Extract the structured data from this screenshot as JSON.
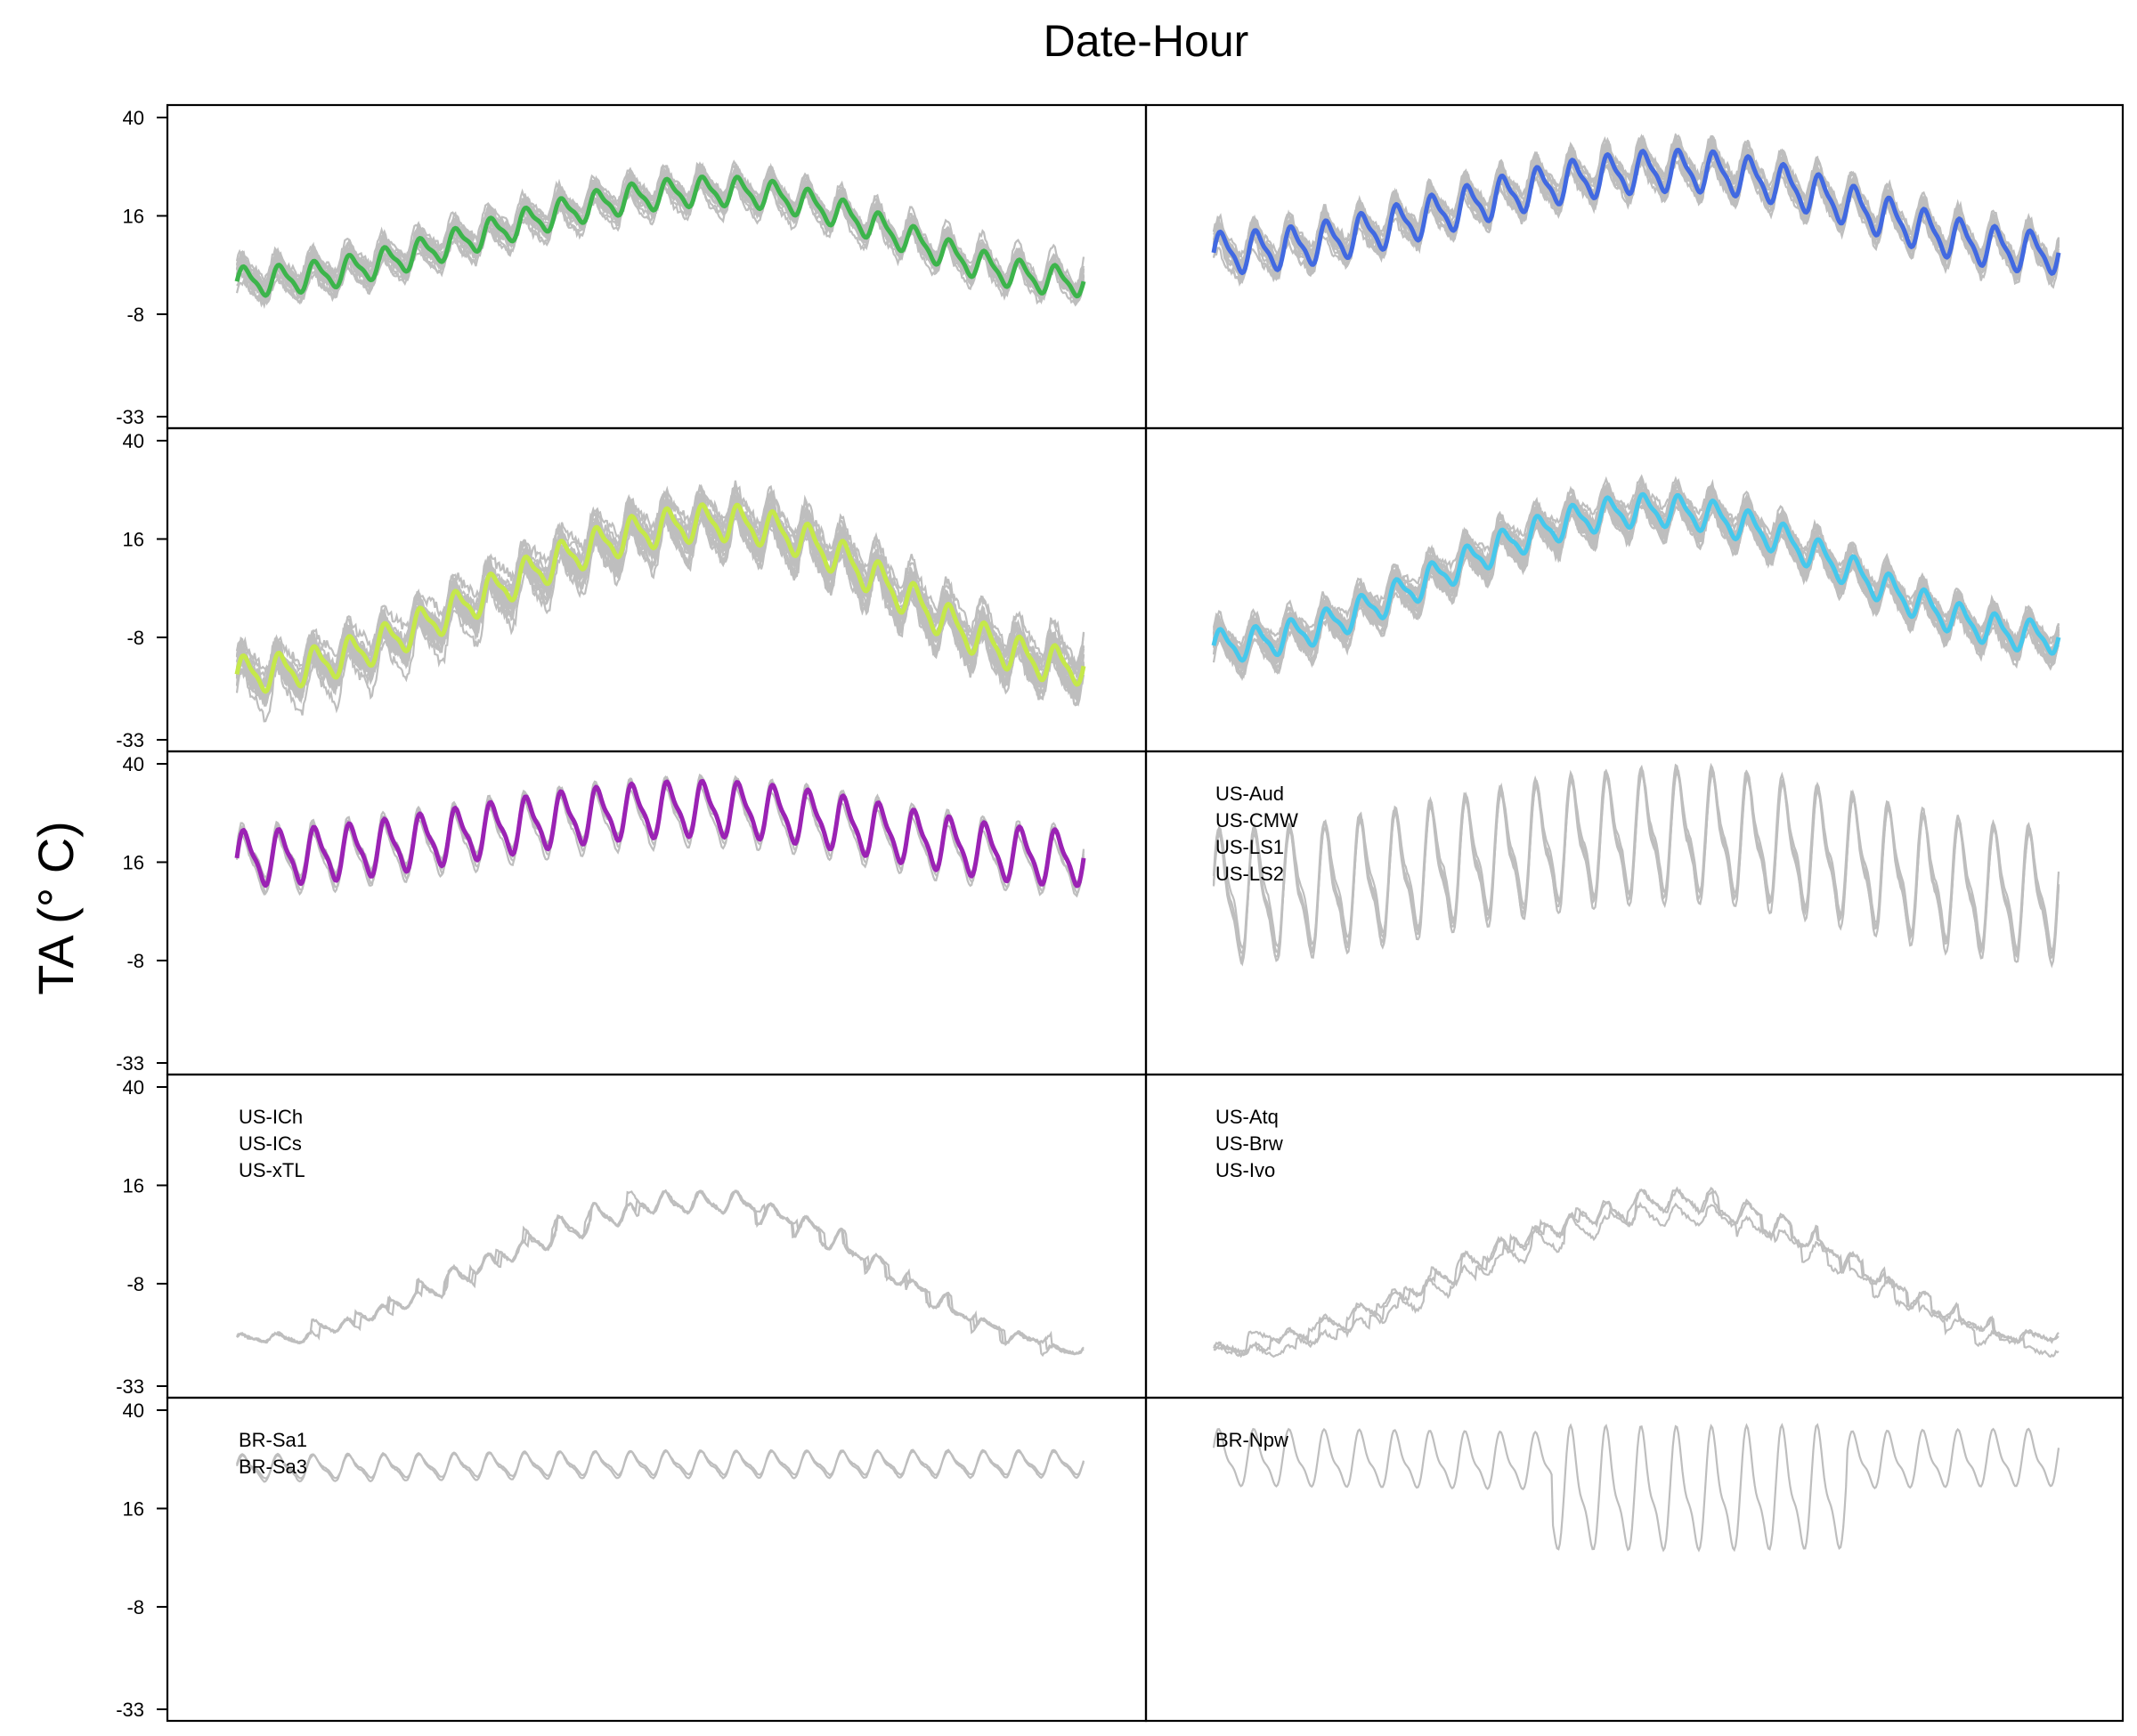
{
  "chart_data": {
    "type": "line",
    "title": "Date-Hour",
    "ylabel": "TA (° C)",
    "xlabel": "",
    "ylim": [
      -33,
      40
    ],
    "y_ticks": [
      40,
      16,
      -8,
      -33
    ],
    "y_tick_labels": [
      "40",
      "16",
      "-8",
      "-33"
    ],
    "grid": false,
    "layout": "5 rows x 2 columns small multiples",
    "background_series_color": "#bebebe",
    "panels": [
      {
        "name": "row1-left",
        "highlight_color": "#3cb44b",
        "ensemble_size": 22,
        "mean_start": 0,
        "mean_peak": 22,
        "mean_end": 0,
        "mean_amplitude": 3.2,
        "spread": 3.5,
        "peak_position": 0.57
      },
      {
        "name": "row1-right",
        "highlight_color": "#4169e1",
        "ensemble_size": 22,
        "mean_start": 7,
        "mean_peak": 27,
        "mean_end": 7,
        "mean_amplitude": 4.5,
        "spread": 4,
        "peak_position": 0.55
      },
      {
        "name": "row2-left",
        "highlight_color": "#c5e84a",
        "ensemble_size": 24,
        "mean_start": -17,
        "mean_peak": 20,
        "mean_end": -15,
        "mean_amplitude": 4,
        "spread": 6,
        "peak_position": 0.57
      },
      {
        "name": "row2-right",
        "highlight_color": "#46c8ec",
        "ensemble_size": 22,
        "mean_start": -10,
        "mean_peak": 23,
        "mean_end": -8,
        "mean_amplitude": 3.5,
        "spread": 4,
        "peak_position": 0.52
      },
      {
        "name": "row3-left",
        "highlight_color": "#9b22b4",
        "ensemble_size": 6,
        "mean_start": 17,
        "mean_peak": 29,
        "mean_end": 17,
        "mean_amplitude": 6,
        "spread": 1.5,
        "peak_position": 0.55
      },
      {
        "name": "row3-right",
        "sites": [
          "US-Aud",
          "US-CMW",
          "US-LS1",
          "US-LS2"
        ],
        "ensemble_size": 4,
        "mean_start": 8,
        "mean_peak": 23,
        "mean_end": 8,
        "mean_amplitude": 11,
        "spread": 2
      },
      {
        "name": "row4-left",
        "sites": [
          "US-ICh",
          "US-ICs",
          "US-xTL"
        ],
        "ensemble_size": 3,
        "mean_start": -21,
        "mean_peak": 13,
        "mean_end": -23,
        "mean_amplitude": 1.5,
        "spread": 1.5
      },
      {
        "name": "row4-right",
        "sites": [
          "US-Atq",
          "US-Brw",
          "US-Ivo"
        ],
        "ensemble_size": 3,
        "mean_start": -24,
        "mean_peak": 11,
        "mean_end": -22,
        "mean_amplitude": 1.5,
        "spread": 2.5
      },
      {
        "name": "row5-left",
        "sites": [
          "BR-Sa1",
          "BR-Sa3"
        ],
        "ensemble_size": 2,
        "mean_start": 26,
        "mean_peak": 27,
        "mean_end": 27,
        "mean_amplitude": 2.5,
        "spread": 0.5
      },
      {
        "name": "row5-right",
        "sites": [
          "BR-Npw"
        ],
        "ensemble_size": 1,
        "mean_start": 28,
        "mean_peak": 27,
        "mean_end": 28,
        "mean_amplitude": 7,
        "spread": 0
      }
    ]
  }
}
